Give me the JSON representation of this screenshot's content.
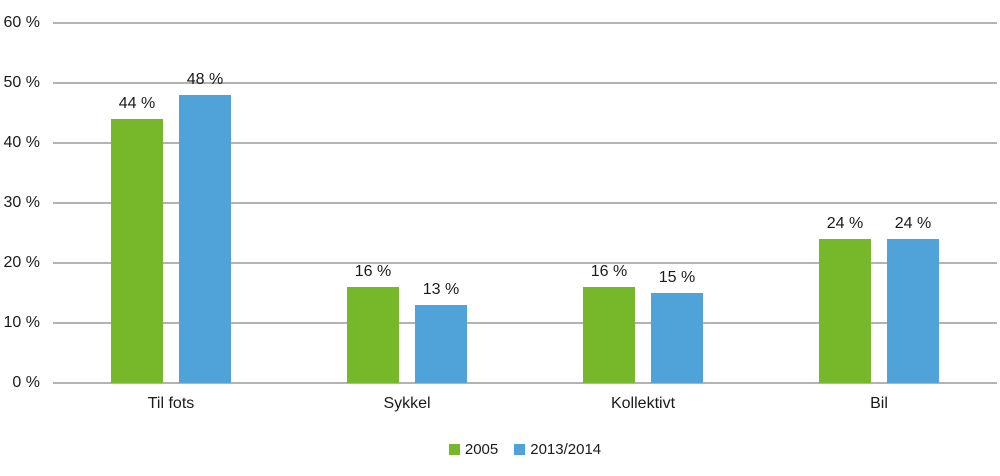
{
  "chart_data": {
    "type": "bar",
    "title": "",
    "xlabel": "",
    "ylabel": "",
    "categories": [
      "Til fots",
      "Sykkel",
      "Kollektivt",
      "Bil"
    ],
    "series": [
      {
        "name": "2005",
        "color": "#76b82a",
        "values": [
          44,
          16,
          16,
          24
        ],
        "value_labels": [
          "44 %",
          "16 %",
          "16 %",
          "24 %"
        ]
      },
      {
        "name": "2013/2014",
        "color": "#4fa3d9",
        "values": [
          48,
          13,
          15,
          24
        ],
        "value_labels": [
          "48 %",
          "13 %",
          "15 %",
          "24 %"
        ]
      }
    ],
    "ylim": [
      0,
      60
    ],
    "ytick_values": [
      0,
      10,
      20,
      30,
      40,
      50,
      60
    ],
    "ytick_labels": [
      "0 %",
      "10 %",
      "20 %",
      "30 %",
      "40 %",
      "50 %",
      "60 %"
    ],
    "grid": true,
    "legend_position": "bottom",
    "data_labels": true
  },
  "colors": {
    "grid": "#b3b3b3",
    "text": "#1a1a1a",
    "background": "#ffffff",
    "series_2005": "#76b82a",
    "series_2013_2014": "#4fa3d9"
  }
}
